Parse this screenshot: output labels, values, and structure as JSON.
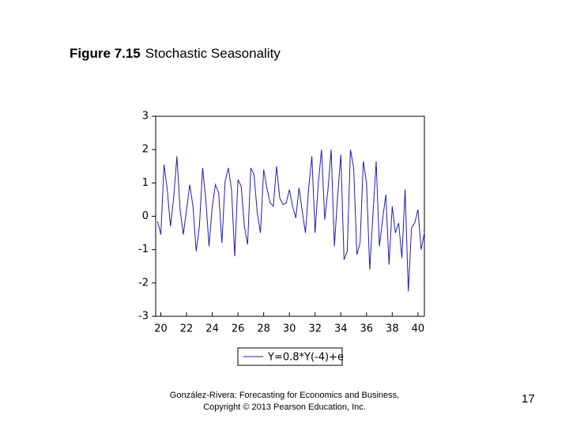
{
  "slide": {
    "figure_label": "Figure 7.15",
    "title": "Stochastic Seasonality",
    "footer": [
      "González-Rivera: Forecasting for Economics and Business,",
      "Copyright © 2013 Pearson Education, Inc."
    ],
    "page_number": "17"
  },
  "chart_data": {
    "type": "line",
    "x": [
      19.75,
      20,
      20.25,
      20.5,
      20.75,
      21,
      21.25,
      21.5,
      21.75,
      22,
      22.25,
      22.5,
      22.75,
      23,
      23.25,
      23.5,
      23.75,
      24,
      24.25,
      24.5,
      24.75,
      25,
      25.25,
      25.5,
      25.75,
      26,
      26.25,
      26.5,
      26.75,
      27,
      27.25,
      27.5,
      27.75,
      28,
      28.25,
      28.5,
      28.75,
      29,
      29.25,
      29.5,
      29.75,
      30,
      30.25,
      30.5,
      30.75,
      31,
      31.25,
      31.5,
      31.75,
      32,
      32.25,
      32.5,
      32.75,
      33,
      33.25,
      33.5,
      33.75,
      34,
      34.25,
      34.5,
      34.75,
      35,
      35.25,
      35.5,
      35.75,
      36,
      36.25,
      36.5,
      36.75,
      37,
      37.25,
      37.5,
      37.75,
      38,
      38.25,
      38.5,
      38.75,
      39,
      39.25,
      39.5,
      39.75,
      40,
      40.25,
      40.5
    ],
    "series": [
      {
        "name": "Y=0.8*Y(-4)+e",
        "color": "#1f1fa8",
        "values": [
          -0.15,
          -0.55,
          1.55,
          0.8,
          -0.3,
          0.55,
          1.8,
          0.2,
          -0.55,
          0.2,
          0.95,
          0.3,
          -1.05,
          -0.3,
          1.45,
          0.5,
          -0.9,
          0.3,
          0.95,
          0.7,
          -0.8,
          1.05,
          1.45,
          0.8,
          -1.2,
          1.1,
          0.9,
          -0.3,
          -0.85,
          1.45,
          1.25,
          0.1,
          -0.5,
          1.4,
          0.85,
          0.4,
          0.3,
          1.5,
          0.55,
          0.35,
          0.4,
          0.8,
          0.3,
          -0.05,
          0.85,
          0.15,
          -0.5,
          0.85,
          1.8,
          -0.5,
          1.0,
          2.0,
          -0.1,
          0.8,
          2.0,
          -0.9,
          0.6,
          1.85,
          -1.3,
          -1.05,
          2.0,
          1.45,
          -1.15,
          -0.8,
          1.65,
          1.0,
          -1.6,
          0.05,
          1.65,
          -0.9,
          -0.1,
          0.65,
          -1.45,
          0.3,
          -0.5,
          -0.2,
          -1.25,
          0.8,
          -2.25,
          -0.35,
          -0.2,
          0.2,
          -1.0,
          -0.5
        ]
      }
    ],
    "xlim": [
      19.6,
      40.5
    ],
    "xticks": [
      20,
      22,
      24,
      26,
      28,
      30,
      32,
      34,
      36,
      38,
      40
    ],
    "ylim": [
      -3,
      3
    ],
    "yticks": [
      -3,
      -2,
      -1,
      0,
      1,
      2,
      3
    ],
    "grid": false
  }
}
